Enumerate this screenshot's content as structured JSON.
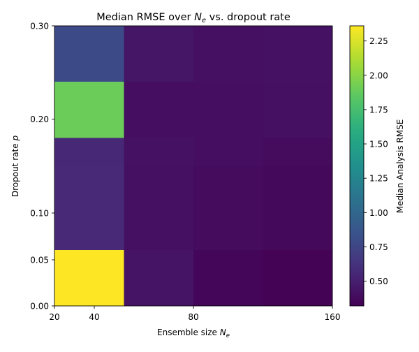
{
  "chart_data": {
    "type": "heatmap",
    "title": "Median RMSE over N_e vs. dropout rate",
    "title_parts": {
      "before": "Median RMSE over ",
      "base": "N",
      "sub": "e",
      "after": " vs. dropout rate"
    },
    "xlabel_parts": {
      "before": "Ensemble size ",
      "base": "N",
      "sub": "e"
    },
    "ylabel_parts": {
      "before": "Dropout rate ",
      "var": "p"
    },
    "colorbar_label": "Median Analysis RMSE",
    "colormap": "viridis",
    "x_edges": [
      20,
      50,
      80,
      110,
      140
    ],
    "y_edges": [
      0.0,
      0.06,
      0.15,
      0.18,
      0.24,
      0.3
    ],
    "x_ticks": [
      20,
      40,
      80,
      160
    ],
    "x_tick_labels": [
      "20",
      "40",
      "80",
      "160"
    ],
    "y_ticks": [
      0.0,
      0.05,
      0.1,
      0.2,
      0.3
    ],
    "y_tick_labels": [
      "0.00",
      "0.05",
      "0.10",
      "0.20",
      "0.30"
    ],
    "values": [
      [
        2.36,
        0.43,
        0.35,
        0.33
      ],
      [
        0.56,
        0.41,
        0.38,
        0.37
      ],
      [
        0.55,
        0.42,
        0.4,
        0.38
      ],
      [
        1.9,
        0.4,
        0.4,
        0.41
      ],
      [
        0.78,
        0.44,
        0.41,
        0.42
      ]
    ],
    "vmin": 0.32,
    "vmax": 2.36,
    "colorbar_ticks": [
      0.5,
      0.75,
      1.0,
      1.25,
      1.5,
      1.75,
      2.0,
      2.25
    ],
    "colorbar_tick_labels": [
      "0.50",
      "0.75",
      "1.00",
      "1.25",
      "1.50",
      "1.75",
      "2.00",
      "2.25"
    ],
    "grid": false,
    "legend": "none"
  }
}
